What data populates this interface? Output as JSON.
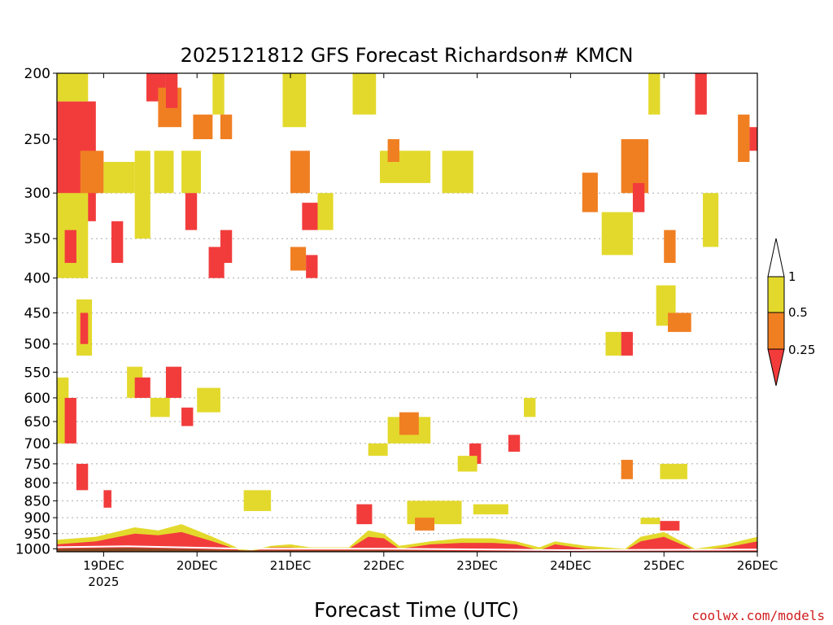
{
  "chart_data": {
    "type": "heatmap",
    "title": "2025121812 GFS Forecast Richardson# KMCN",
    "xlabel": "Forecast Time (UTC)",
    "ylabel": "",
    "credit": "coolwx.com/models",
    "y_scale": "log-pressure (inverted)",
    "ylim": [
      1010,
      200
    ],
    "y_ticks": [
      200,
      250,
      300,
      350,
      400,
      450,
      500,
      550,
      600,
      650,
      700,
      750,
      800,
      850,
      900,
      950,
      1000
    ],
    "x_range_hours": [
      0,
      180
    ],
    "x_ticks": [
      {
        "label": "19DEC",
        "sub": "2025",
        "hours": 12
      },
      {
        "label": "20DEC",
        "sub": "",
        "hours": 36
      },
      {
        "label": "21DEC",
        "sub": "",
        "hours": 60
      },
      {
        "label": "22DEC",
        "sub": "",
        "hours": 84
      },
      {
        "label": "23DEC",
        "sub": "",
        "hours": 108
      },
      {
        "label": "24DEC",
        "sub": "",
        "hours": 132
      },
      {
        "label": "25DEC",
        "sub": "",
        "hours": 156
      },
      {
        "label": "26DEC",
        "sub": "",
        "hours": 180
      }
    ],
    "gridlines": "dotted at pressure ticks 300-950",
    "legend": {
      "position": "right",
      "labels": [
        "1",
        "0.5",
        "0.25"
      ],
      "bins": [
        {
          "range": "< 0.25",
          "color": "#f23c3c"
        },
        {
          "range": "0.25 - 0.5",
          "color": "#f07f22"
        },
        {
          "range": "0.5 - 1",
          "color": "#e3d92c"
        },
        {
          "range": "> 1",
          "color": "#ffffff"
        }
      ]
    },
    "colors": {
      "low": "#f23c3c",
      "mid": "#f07f22",
      "high": "#e3d92c",
      "ground": "#8a4820"
    },
    "regions": [
      {
        "cls": "low",
        "t0": 0,
        "t1": 10,
        "p0": 220,
        "p1": 330
      },
      {
        "cls": "mid",
        "t0": 6,
        "t1": 12,
        "p0": 260,
        "p1": 300
      },
      {
        "cls": "high",
        "t0": 0,
        "t1": 8,
        "p0": 200,
        "p1": 220
      },
      {
        "cls": "high",
        "t0": 0,
        "t1": 8,
        "p0": 300,
        "p1": 400
      },
      {
        "cls": "low",
        "t0": 2,
        "t1": 5,
        "p0": 340,
        "p1": 380
      },
      {
        "cls": "high",
        "t0": 12,
        "t1": 20,
        "p0": 270,
        "p1": 300
      },
      {
        "cls": "low",
        "t0": 14,
        "t1": 17,
        "p0": 330,
        "p1": 380
      },
      {
        "cls": "high",
        "t0": 20,
        "t1": 24,
        "p0": 260,
        "p1": 350
      },
      {
        "cls": "low",
        "t0": 23,
        "t1": 28,
        "p0": 200,
        "p1": 220
      },
      {
        "cls": "mid",
        "t0": 26,
        "t1": 32,
        "p0": 210,
        "p1": 240
      },
      {
        "cls": "low",
        "t0": 28,
        "t1": 31,
        "p0": 200,
        "p1": 225
      },
      {
        "cls": "high",
        "t0": 25,
        "t1": 30,
        "p0": 260,
        "p1": 300
      },
      {
        "cls": "high",
        "t0": 32,
        "t1": 37,
        "p0": 260,
        "p1": 300
      },
      {
        "cls": "low",
        "t0": 33,
        "t1": 36,
        "p0": 300,
        "p1": 340
      },
      {
        "cls": "mid",
        "t0": 35,
        "t1": 40,
        "p0": 230,
        "p1": 250
      },
      {
        "cls": "high",
        "t0": 40,
        "t1": 43,
        "p0": 200,
        "p1": 230
      },
      {
        "cls": "low",
        "t0": 39,
        "t1": 43,
        "p0": 360,
        "p1": 400
      },
      {
        "cls": "mid",
        "t0": 42,
        "t1": 45,
        "p0": 230,
        "p1": 250
      },
      {
        "cls": "low",
        "t0": 42,
        "t1": 45,
        "p0": 340,
        "p1": 380
      },
      {
        "cls": "high",
        "t0": 5,
        "t1": 9,
        "p0": 430,
        "p1": 520
      },
      {
        "cls": "low",
        "t0": 6,
        "t1": 8,
        "p0": 450,
        "p1": 500
      },
      {
        "cls": "high",
        "t0": 0,
        "t1": 3,
        "p0": 560,
        "p1": 700
      },
      {
        "cls": "low",
        "t0": 2,
        "t1": 5,
        "p0": 600,
        "p1": 700
      },
      {
        "cls": "high",
        "t0": 18,
        "t1": 22,
        "p0": 540,
        "p1": 600
      },
      {
        "cls": "low",
        "t0": 20,
        "t1": 24,
        "p0": 560,
        "p1": 600
      },
      {
        "cls": "high",
        "t0": 24,
        "t1": 29,
        "p0": 600,
        "p1": 640
      },
      {
        "cls": "low",
        "t0": 28,
        "t1": 32,
        "p0": 540,
        "p1": 600
      },
      {
        "cls": "high",
        "t0": 36,
        "t1": 42,
        "p0": 580,
        "p1": 630
      },
      {
        "cls": "low",
        "t0": 32,
        "t1": 35,
        "p0": 620,
        "p1": 660
      },
      {
        "cls": "low",
        "t0": 5,
        "t1": 8,
        "p0": 750,
        "p1": 820
      },
      {
        "cls": "low",
        "t0": 12,
        "t1": 14,
        "p0": 820,
        "p1": 870
      },
      {
        "cls": "high",
        "t0": 48,
        "t1": 55,
        "p0": 820,
        "p1": 880
      },
      {
        "cls": "mid",
        "t0": 60,
        "t1": 65,
        "p0": 260,
        "p1": 300
      },
      {
        "cls": "high",
        "t0": 58,
        "t1": 64,
        "p0": 200,
        "p1": 240
      },
      {
        "cls": "low",
        "t0": 63,
        "t1": 67,
        "p0": 310,
        "p1": 340
      },
      {
        "cls": "mid",
        "t0": 60,
        "t1": 64,
        "p0": 360,
        "p1": 390
      },
      {
        "cls": "low",
        "t0": 64,
        "t1": 67,
        "p0": 370,
        "p1": 400
      },
      {
        "cls": "high",
        "t0": 67,
        "t1": 71,
        "p0": 300,
        "p1": 340
      },
      {
        "cls": "high",
        "t0": 76,
        "t1": 82,
        "p0": 200,
        "p1": 230
      },
      {
        "cls": "high",
        "t0": 83,
        "t1": 96,
        "p0": 260,
        "p1": 290
      },
      {
        "cls": "high",
        "t0": 99,
        "t1": 107,
        "p0": 260,
        "p1": 300
      },
      {
        "cls": "mid",
        "t0": 85,
        "t1": 88,
        "p0": 250,
        "p1": 270
      },
      {
        "cls": "high",
        "t0": 85,
        "t1": 96,
        "p0": 640,
        "p1": 700
      },
      {
        "cls": "mid",
        "t0": 88,
        "t1": 93,
        "p0": 630,
        "p1": 680
      },
      {
        "cls": "high",
        "t0": 80,
        "t1": 85,
        "p0": 700,
        "p1": 730
      },
      {
        "cls": "low",
        "t0": 106,
        "t1": 109,
        "p0": 700,
        "p1": 750
      },
      {
        "cls": "high",
        "t0": 103,
        "t1": 108,
        "p0": 730,
        "p1": 770
      },
      {
        "cls": "low",
        "t0": 116,
        "t1": 119,
        "p0": 680,
        "p1": 720
      },
      {
        "cls": "high",
        "t0": 120,
        "t1": 123,
        "p0": 600,
        "p1": 640
      },
      {
        "cls": "high",
        "t0": 90,
        "t1": 104,
        "p0": 850,
        "p1": 920
      },
      {
        "cls": "mid",
        "t0": 92,
        "t1": 97,
        "p0": 900,
        "p1": 940
      },
      {
        "cls": "low",
        "t0": 77,
        "t1": 81,
        "p0": 860,
        "p1": 920
      },
      {
        "cls": "high",
        "t0": 107,
        "t1": 116,
        "p0": 860,
        "p1": 890
      },
      {
        "cls": "mid",
        "t0": 135,
        "t1": 139,
        "p0": 280,
        "p1": 320
      },
      {
        "cls": "high",
        "t0": 140,
        "t1": 148,
        "p0": 320,
        "p1": 370
      },
      {
        "cls": "mid",
        "t0": 145,
        "t1": 152,
        "p0": 250,
        "p1": 300
      },
      {
        "cls": "low",
        "t0": 148,
        "t1": 151,
        "p0": 290,
        "p1": 320
      },
      {
        "cls": "high",
        "t0": 152,
        "t1": 155,
        "p0": 200,
        "p1": 230
      },
      {
        "cls": "low",
        "t0": 164,
        "t1": 167,
        "p0": 200,
        "p1": 230
      },
      {
        "cls": "high",
        "t0": 166,
        "t1": 170,
        "p0": 300,
        "p1": 360
      },
      {
        "cls": "mid",
        "t0": 175,
        "t1": 178,
        "p0": 230,
        "p1": 270
      },
      {
        "cls": "low",
        "t0": 178,
        "t1": 180,
        "p0": 240,
        "p1": 260
      },
      {
        "cls": "mid",
        "t0": 156,
        "t1": 159,
        "p0": 340,
        "p1": 380
      },
      {
        "cls": "high",
        "t0": 154,
        "t1": 159,
        "p0": 410,
        "p1": 470
      },
      {
        "cls": "mid",
        "t0": 157,
        "t1": 163,
        "p0": 450,
        "p1": 480
      },
      {
        "cls": "low",
        "t0": 145,
        "t1": 148,
        "p0": 480,
        "p1": 520
      },
      {
        "cls": "high",
        "t0": 141,
        "t1": 145,
        "p0": 480,
        "p1": 520
      },
      {
        "cls": "high",
        "t0": 155,
        "t1": 162,
        "p0": 750,
        "p1": 790
      },
      {
        "cls": "mid",
        "t0": 145,
        "t1": 148,
        "p0": 740,
        "p1": 790
      },
      {
        "cls": "low",
        "t0": 155,
        "t1": 160,
        "p0": 910,
        "p1": 940
      },
      {
        "cls": "high",
        "t0": 150,
        "t1": 155,
        "p0": 900,
        "p1": 920
      }
    ],
    "surface_ri_profile": [
      {
        "hours": 0,
        "top_hPa": 970,
        "low_top_hPa": 985
      },
      {
        "hours": 10,
        "top_hPa": 960,
        "low_top_hPa": 975
      },
      {
        "hours": 20,
        "top_hPa": 930,
        "low_top_hPa": 950
      },
      {
        "hours": 26,
        "top_hPa": 940,
        "low_top_hPa": 955
      },
      {
        "hours": 32,
        "top_hPa": 920,
        "low_top_hPa": 945
      },
      {
        "hours": 40,
        "top_hPa": 960,
        "low_top_hPa": 975
      },
      {
        "hours": 47,
        "top_hPa": 1000,
        "low_top_hPa": 1005
      },
      {
        "hours": 50,
        "top_hPa": 1005,
        "low_top_hPa": 1008
      },
      {
        "hours": 55,
        "top_hPa": 990,
        "low_top_hPa": 995
      },
      {
        "hours": 60,
        "top_hPa": 985,
        "low_top_hPa": 995
      },
      {
        "hours": 65,
        "top_hPa": 995,
        "low_top_hPa": 1000
      },
      {
        "hours": 75,
        "top_hPa": 995,
        "low_top_hPa": 1000
      },
      {
        "hours": 80,
        "top_hPa": 940,
        "low_top_hPa": 960
      },
      {
        "hours": 84,
        "top_hPa": 950,
        "low_top_hPa": 965
      },
      {
        "hours": 88,
        "top_hPa": 990,
        "low_top_hPa": 1000
      },
      {
        "hours": 96,
        "top_hPa": 975,
        "low_top_hPa": 985
      },
      {
        "hours": 104,
        "top_hPa": 965,
        "low_top_hPa": 980
      },
      {
        "hours": 112,
        "top_hPa": 965,
        "low_top_hPa": 980
      },
      {
        "hours": 118,
        "top_hPa": 975,
        "low_top_hPa": 985
      },
      {
        "hours": 124,
        "top_hPa": 995,
        "low_top_hPa": 1005
      },
      {
        "hours": 128,
        "top_hPa": 975,
        "low_top_hPa": 985
      },
      {
        "hours": 136,
        "top_hPa": 990,
        "low_top_hPa": 1000
      },
      {
        "hours": 146,
        "top_hPa": 1000,
        "low_top_hPa": 1005
      },
      {
        "hours": 150,
        "top_hPa": 960,
        "low_top_hPa": 975
      },
      {
        "hours": 156,
        "top_hPa": 945,
        "low_top_hPa": 960
      },
      {
        "hours": 164,
        "top_hPa": 1000,
        "low_top_hPa": 1005
      },
      {
        "hours": 172,
        "top_hPa": 985,
        "low_top_hPa": 995
      },
      {
        "hours": 180,
        "top_hPa": 960,
        "low_top_hPa": 975
      }
    ],
    "ground_pressure_hPa": [
      {
        "hours": 0,
        "p": 1000
      },
      {
        "hours": 18,
        "p": 997
      },
      {
        "hours": 48,
        "p": 1005
      },
      {
        "hours": 84,
        "p": 1005
      },
      {
        "hours": 130,
        "p": 1010
      },
      {
        "hours": 180,
        "p": 1008
      }
    ]
  }
}
